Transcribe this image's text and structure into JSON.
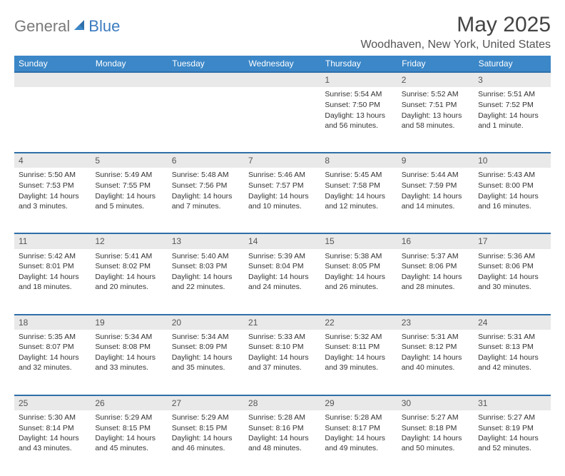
{
  "logo": {
    "general": "General",
    "blue": "Blue"
  },
  "title": "May 2025",
  "location": "Woodhaven, New York, United States",
  "colors": {
    "header_bg": "#3b87c8",
    "row_border": "#2f6fa8",
    "daynum_bg": "#e9e9e9",
    "logo_gray": "#7a7a7a",
    "logo_blue": "#3b7bbf"
  },
  "weekdays": [
    "Sunday",
    "Monday",
    "Tuesday",
    "Wednesday",
    "Thursday",
    "Friday",
    "Saturday"
  ],
  "weeks": [
    [
      null,
      null,
      null,
      null,
      {
        "n": "1",
        "sr": "Sunrise: 5:54 AM",
        "ss": "Sunset: 7:50 PM",
        "dl": "Daylight: 13 hours and 56 minutes."
      },
      {
        "n": "2",
        "sr": "Sunrise: 5:52 AM",
        "ss": "Sunset: 7:51 PM",
        "dl": "Daylight: 13 hours and 58 minutes."
      },
      {
        "n": "3",
        "sr": "Sunrise: 5:51 AM",
        "ss": "Sunset: 7:52 PM",
        "dl": "Daylight: 14 hours and 1 minute."
      }
    ],
    [
      {
        "n": "4",
        "sr": "Sunrise: 5:50 AM",
        "ss": "Sunset: 7:53 PM",
        "dl": "Daylight: 14 hours and 3 minutes."
      },
      {
        "n": "5",
        "sr": "Sunrise: 5:49 AM",
        "ss": "Sunset: 7:55 PM",
        "dl": "Daylight: 14 hours and 5 minutes."
      },
      {
        "n": "6",
        "sr": "Sunrise: 5:48 AM",
        "ss": "Sunset: 7:56 PM",
        "dl": "Daylight: 14 hours and 7 minutes."
      },
      {
        "n": "7",
        "sr": "Sunrise: 5:46 AM",
        "ss": "Sunset: 7:57 PM",
        "dl": "Daylight: 14 hours and 10 minutes."
      },
      {
        "n": "8",
        "sr": "Sunrise: 5:45 AM",
        "ss": "Sunset: 7:58 PM",
        "dl": "Daylight: 14 hours and 12 minutes."
      },
      {
        "n": "9",
        "sr": "Sunrise: 5:44 AM",
        "ss": "Sunset: 7:59 PM",
        "dl": "Daylight: 14 hours and 14 minutes."
      },
      {
        "n": "10",
        "sr": "Sunrise: 5:43 AM",
        "ss": "Sunset: 8:00 PM",
        "dl": "Daylight: 14 hours and 16 minutes."
      }
    ],
    [
      {
        "n": "11",
        "sr": "Sunrise: 5:42 AM",
        "ss": "Sunset: 8:01 PM",
        "dl": "Daylight: 14 hours and 18 minutes."
      },
      {
        "n": "12",
        "sr": "Sunrise: 5:41 AM",
        "ss": "Sunset: 8:02 PM",
        "dl": "Daylight: 14 hours and 20 minutes."
      },
      {
        "n": "13",
        "sr": "Sunrise: 5:40 AM",
        "ss": "Sunset: 8:03 PM",
        "dl": "Daylight: 14 hours and 22 minutes."
      },
      {
        "n": "14",
        "sr": "Sunrise: 5:39 AM",
        "ss": "Sunset: 8:04 PM",
        "dl": "Daylight: 14 hours and 24 minutes."
      },
      {
        "n": "15",
        "sr": "Sunrise: 5:38 AM",
        "ss": "Sunset: 8:05 PM",
        "dl": "Daylight: 14 hours and 26 minutes."
      },
      {
        "n": "16",
        "sr": "Sunrise: 5:37 AM",
        "ss": "Sunset: 8:06 PM",
        "dl": "Daylight: 14 hours and 28 minutes."
      },
      {
        "n": "17",
        "sr": "Sunrise: 5:36 AM",
        "ss": "Sunset: 8:06 PM",
        "dl": "Daylight: 14 hours and 30 minutes."
      }
    ],
    [
      {
        "n": "18",
        "sr": "Sunrise: 5:35 AM",
        "ss": "Sunset: 8:07 PM",
        "dl": "Daylight: 14 hours and 32 minutes."
      },
      {
        "n": "19",
        "sr": "Sunrise: 5:34 AM",
        "ss": "Sunset: 8:08 PM",
        "dl": "Daylight: 14 hours and 33 minutes."
      },
      {
        "n": "20",
        "sr": "Sunrise: 5:34 AM",
        "ss": "Sunset: 8:09 PM",
        "dl": "Daylight: 14 hours and 35 minutes."
      },
      {
        "n": "21",
        "sr": "Sunrise: 5:33 AM",
        "ss": "Sunset: 8:10 PM",
        "dl": "Daylight: 14 hours and 37 minutes."
      },
      {
        "n": "22",
        "sr": "Sunrise: 5:32 AM",
        "ss": "Sunset: 8:11 PM",
        "dl": "Daylight: 14 hours and 39 minutes."
      },
      {
        "n": "23",
        "sr": "Sunrise: 5:31 AM",
        "ss": "Sunset: 8:12 PM",
        "dl": "Daylight: 14 hours and 40 minutes."
      },
      {
        "n": "24",
        "sr": "Sunrise: 5:31 AM",
        "ss": "Sunset: 8:13 PM",
        "dl": "Daylight: 14 hours and 42 minutes."
      }
    ],
    [
      {
        "n": "25",
        "sr": "Sunrise: 5:30 AM",
        "ss": "Sunset: 8:14 PM",
        "dl": "Daylight: 14 hours and 43 minutes."
      },
      {
        "n": "26",
        "sr": "Sunrise: 5:29 AM",
        "ss": "Sunset: 8:15 PM",
        "dl": "Daylight: 14 hours and 45 minutes."
      },
      {
        "n": "27",
        "sr": "Sunrise: 5:29 AM",
        "ss": "Sunset: 8:15 PM",
        "dl": "Daylight: 14 hours and 46 minutes."
      },
      {
        "n": "28",
        "sr": "Sunrise: 5:28 AM",
        "ss": "Sunset: 8:16 PM",
        "dl": "Daylight: 14 hours and 48 minutes."
      },
      {
        "n": "29",
        "sr": "Sunrise: 5:28 AM",
        "ss": "Sunset: 8:17 PM",
        "dl": "Daylight: 14 hours and 49 minutes."
      },
      {
        "n": "30",
        "sr": "Sunrise: 5:27 AM",
        "ss": "Sunset: 8:18 PM",
        "dl": "Daylight: 14 hours and 50 minutes."
      },
      {
        "n": "31",
        "sr": "Sunrise: 5:27 AM",
        "ss": "Sunset: 8:19 PM",
        "dl": "Daylight: 14 hours and 52 minutes."
      }
    ]
  ]
}
